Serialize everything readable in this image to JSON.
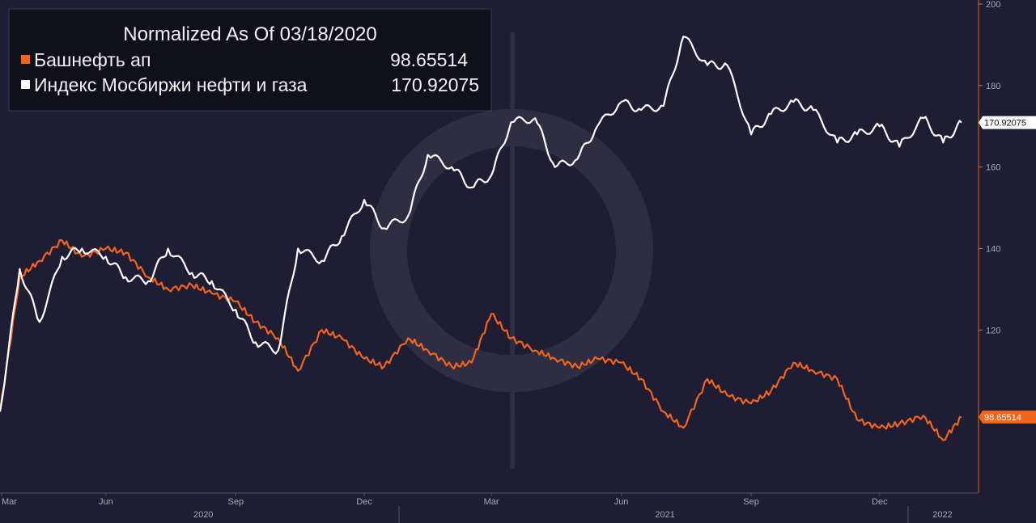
{
  "chart_data": {
    "type": "line",
    "title": "Normalized As Of 03/18/2020",
    "x_month_labels": [
      "Mar",
      "Jun",
      "Sep",
      "Dec",
      "Mar",
      "Jun",
      "Sep",
      "Dec"
    ],
    "x_year_labels": [
      "2020",
      "2021",
      "2022"
    ],
    "y_ticks": [
      "200",
      "180",
      "160",
      "140",
      "120"
    ],
    "ylim": [
      80,
      200
    ],
    "grid": false,
    "legend_position": "top-left",
    "x": [
      "2020-03-18",
      "2020-04-01",
      "2020-04-15",
      "2020-05-01",
      "2020-05-15",
      "2020-06-01",
      "2020-06-15",
      "2020-07-01",
      "2020-07-15",
      "2020-08-01",
      "2020-08-15",
      "2020-09-01",
      "2020-09-15",
      "2020-10-01",
      "2020-10-15",
      "2020-11-01",
      "2020-11-15",
      "2020-12-01",
      "2020-12-15",
      "2021-01-01",
      "2021-01-15",
      "2021-02-01",
      "2021-02-15",
      "2021-03-01",
      "2021-03-15",
      "2021-04-01",
      "2021-04-15",
      "2021-05-01",
      "2021-05-15",
      "2021-06-01",
      "2021-06-15",
      "2021-07-01",
      "2021-07-15",
      "2021-08-01",
      "2021-08-15",
      "2021-09-01",
      "2021-09-15",
      "2021-10-01",
      "2021-10-15",
      "2021-11-01",
      "2021-11-15",
      "2021-12-01",
      "2021-12-15",
      "2022-01-01",
      "2022-01-15",
      "2022-01-28"
    ],
    "series": [
      {
        "name": "Башнефть ап",
        "color": "#f26419",
        "last_value_label": "98.65514",
        "values": [
          100,
          133,
          137,
          142,
          138,
          140,
          139,
          133,
          130,
          131,
          129,
          127,
          122,
          118,
          110,
          120,
          118,
          113,
          111,
          118,
          115,
          111,
          112,
          124,
          118,
          115,
          113,
          111,
          113,
          112,
          108,
          100,
          96,
          108,
          104,
          102,
          105,
          112,
          110,
          108,
          98,
          96,
          97,
          99,
          93,
          98.66
        ]
      },
      {
        "name": "Индекс Мосбиржи нефти и газа",
        "color": "#ffffff",
        "last_value_label": "170.92075",
        "values": [
          100,
          135,
          122,
          138,
          140,
          138,
          133,
          132,
          140,
          134,
          132,
          125,
          117,
          115,
          140,
          137,
          143,
          152,
          145,
          148,
          163,
          160,
          155,
          158,
          171,
          172,
          160,
          162,
          170,
          176,
          174,
          175,
          192,
          185,
          185,
          168,
          173,
          176,
          174,
          166,
          168,
          170,
          165,
          172,
          166,
          170.92
        ]
      }
    ]
  }
}
